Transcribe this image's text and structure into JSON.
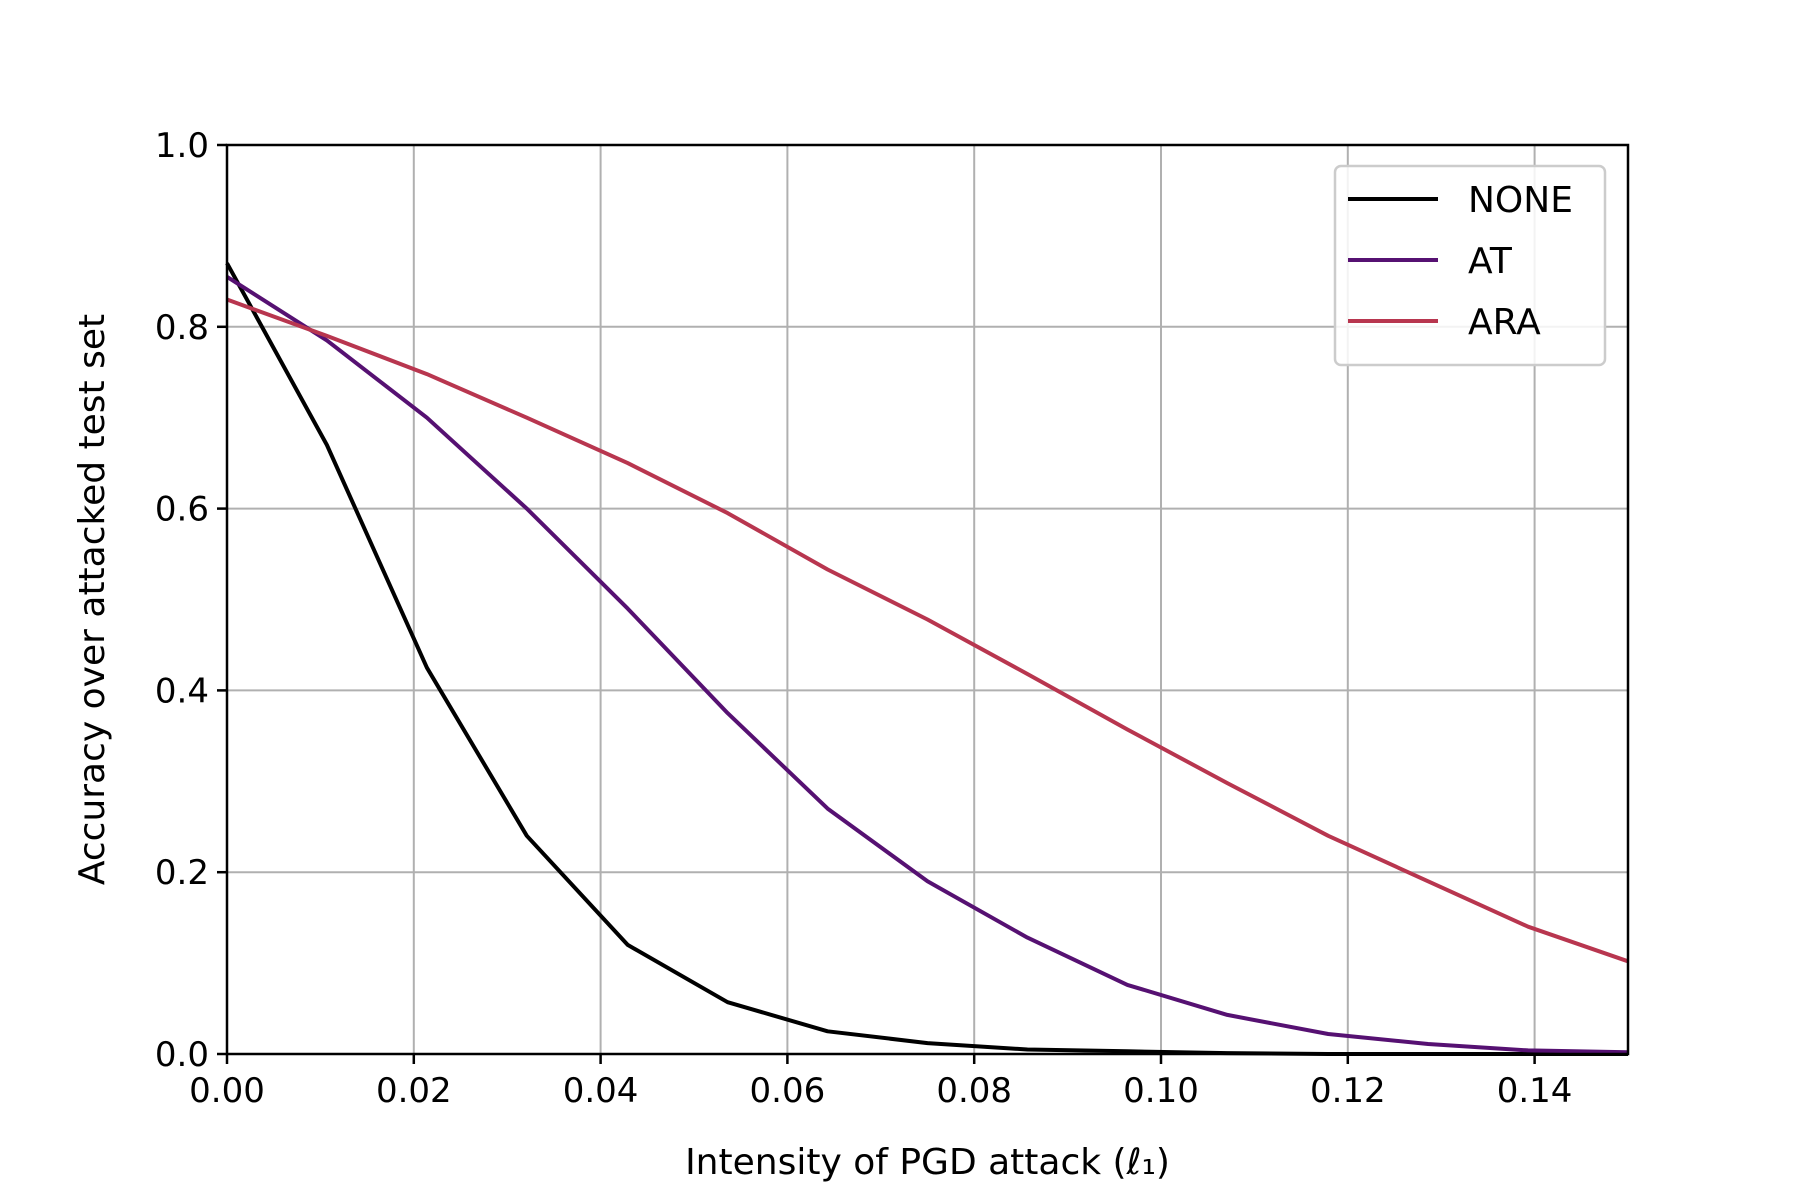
{
  "chart_data": {
    "type": "line",
    "title": "",
    "xlabel": "Intensity of PGD attack (ℓ₁)",
    "ylabel": "Accuracy over attacked test set",
    "xlim": [
      0.0,
      0.15
    ],
    "ylim": [
      0.0,
      1.0
    ],
    "xticks": [
      0.0,
      0.02,
      0.04,
      0.06,
      0.08,
      0.1,
      0.12,
      0.14
    ],
    "xtick_labels": [
      "0.00",
      "0.02",
      "0.04",
      "0.06",
      "0.08",
      "0.10",
      "0.12",
      "0.14"
    ],
    "yticks": [
      0.0,
      0.2,
      0.4,
      0.6,
      0.8,
      1.0
    ],
    "ytick_labels": [
      "0.0",
      "0.2",
      "0.4",
      "0.6",
      "0.8",
      "1.0"
    ],
    "grid": true,
    "legend_position": "top-right",
    "series": [
      {
        "name": "NONE",
        "color": "#000000",
        "x": [
          0.0,
          0.0107,
          0.0214,
          0.0321,
          0.0429,
          0.0536,
          0.0643,
          0.075,
          0.0857,
          0.0964,
          0.1071,
          0.1179,
          0.1286,
          0.1393,
          0.15
        ],
        "y": [
          0.87,
          0.67,
          0.425,
          0.24,
          0.12,
          0.057,
          0.025,
          0.012,
          0.005,
          0.003,
          0.001,
          0.0,
          0.0,
          0.0,
          0.0
        ]
      },
      {
        "name": "AT",
        "color": "#561172",
        "x": [
          0.0,
          0.0107,
          0.0214,
          0.0321,
          0.0429,
          0.0536,
          0.0643,
          0.075,
          0.0857,
          0.0964,
          0.1071,
          0.1179,
          0.1286,
          0.1393,
          0.15
        ],
        "y": [
          0.855,
          0.785,
          0.7,
          0.6,
          0.49,
          0.375,
          0.27,
          0.19,
          0.128,
          0.076,
          0.043,
          0.022,
          0.011,
          0.004,
          0.002
        ]
      },
      {
        "name": "ARA",
        "color": "#b8364f",
        "x": [
          0.0,
          0.0107,
          0.0214,
          0.0321,
          0.0429,
          0.0536,
          0.0643,
          0.075,
          0.0857,
          0.0964,
          0.1071,
          0.1179,
          0.1286,
          0.1393,
          0.15
        ],
        "y": [
          0.83,
          0.79,
          0.748,
          0.7,
          0.65,
          0.595,
          0.533,
          0.478,
          0.418,
          0.357,
          0.298,
          0.24,
          0.19,
          0.14,
          0.102
        ]
      }
    ]
  }
}
